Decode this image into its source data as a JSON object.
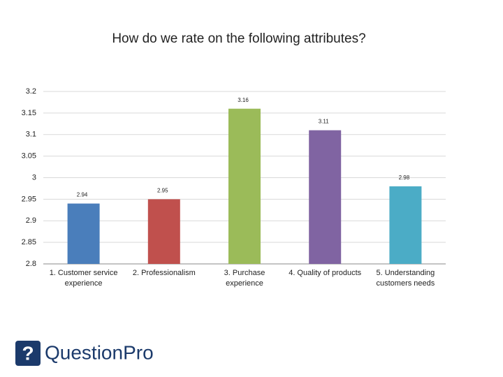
{
  "chart_data": {
    "type": "bar",
    "title": "How do we rate on the following attributes?",
    "categories": [
      "1. Customer service experience",
      "2. Professionalism",
      "3. Purchase experience",
      "4. Quality of products",
      "5. Understanding customers needs"
    ],
    "values": [
      2.94,
      2.95,
      3.16,
      3.11,
      2.98
    ],
    "colors": [
      "#4a7ebb",
      "#c0504d",
      "#9bbb59",
      "#8064a2",
      "#4bacc6"
    ],
    "ylim": [
      2.8,
      3.2
    ],
    "yticks": [
      3.2,
      3.15,
      3.1,
      3.05,
      3,
      2.95,
      2.9,
      2.85,
      2.8
    ],
    "grid": true
  },
  "logo": "QuestionPro"
}
